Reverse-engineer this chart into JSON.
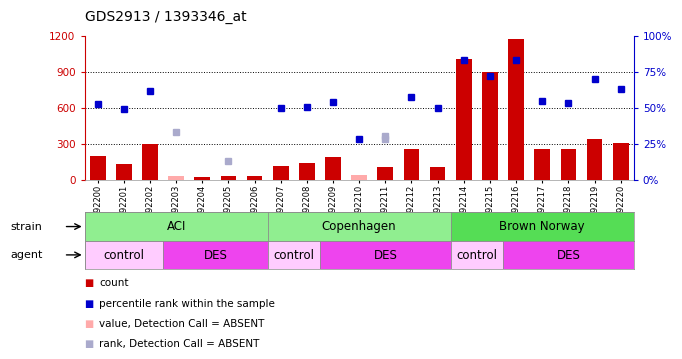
{
  "title": "GDS2913 / 1393346_at",
  "samples": [
    "GSM92200",
    "GSM92201",
    "GSM92202",
    "GSM92203",
    "GSM92204",
    "GSM92205",
    "GSM92206",
    "GSM92207",
    "GSM92208",
    "GSM92209",
    "GSM92210",
    "GSM92211",
    "GSM92212",
    "GSM92213",
    "GSM92214",
    "GSM92215",
    "GSM92216",
    "GSM92217",
    "GSM92218",
    "GSM92219",
    "GSM92220"
  ],
  "count_values": [
    200,
    130,
    300,
    30,
    25,
    30,
    30,
    120,
    140,
    195,
    45,
    105,
    255,
    110,
    1010,
    900,
    1175,
    255,
    255,
    340,
    305
  ],
  "count_absent": [
    false,
    false,
    false,
    true,
    false,
    false,
    false,
    false,
    false,
    false,
    true,
    false,
    false,
    false,
    false,
    false,
    false,
    false,
    false,
    false,
    false
  ],
  "percentile_values": [
    630,
    590,
    740,
    null,
    null,
    null,
    null,
    600,
    610,
    650,
    340,
    340,
    695,
    600,
    1005,
    870,
    1005,
    660,
    640,
    840,
    760
  ],
  "percentile_absent": [
    false,
    false,
    false,
    false,
    true,
    true,
    false,
    false,
    false,
    false,
    false,
    true,
    false,
    false,
    false,
    false,
    false,
    false,
    false,
    false,
    false
  ],
  "rank_absent_values": [
    null,
    null,
    null,
    400,
    null,
    160,
    null,
    null,
    null,
    null,
    null,
    370,
    null,
    null,
    null,
    null,
    null,
    null,
    null,
    null,
    null
  ],
  "ylim_left": [
    0,
    1200
  ],
  "ylim_right": [
    0,
    100
  ],
  "yticks_left": [
    0,
    300,
    600,
    900,
    1200
  ],
  "yticks_right": [
    0,
    25,
    50,
    75,
    100
  ],
  "strain_groups": [
    {
      "label": "ACI",
      "start": 0,
      "end": 6,
      "color": "#90EE90"
    },
    {
      "label": "Copenhagen",
      "start": 7,
      "end": 13,
      "color": "#90EE90"
    },
    {
      "label": "Brown Norway",
      "start": 14,
      "end": 20,
      "color": "#55DD55"
    }
  ],
  "agent_groups": [
    {
      "label": "control",
      "start": 0,
      "end": 2,
      "color": "#FFCCFF"
    },
    {
      "label": "DES",
      "start": 3,
      "end": 6,
      "color": "#EE44EE"
    },
    {
      "label": "control",
      "start": 7,
      "end": 8,
      "color": "#FFCCFF"
    },
    {
      "label": "DES",
      "start": 9,
      "end": 13,
      "color": "#EE44EE"
    },
    {
      "label": "control",
      "start": 14,
      "end": 15,
      "color": "#FFCCFF"
    },
    {
      "label": "DES",
      "start": 16,
      "end": 20,
      "color": "#EE44EE"
    }
  ],
  "bar_color": "#CC0000",
  "bar_absent_color": "#FFAAAA",
  "dot_color": "#0000CC",
  "dot_absent_color": "#AAAACC",
  "bg_color": "#FFFFFF",
  "left_axis_color": "#CC0000",
  "right_axis_color": "#0000CC"
}
